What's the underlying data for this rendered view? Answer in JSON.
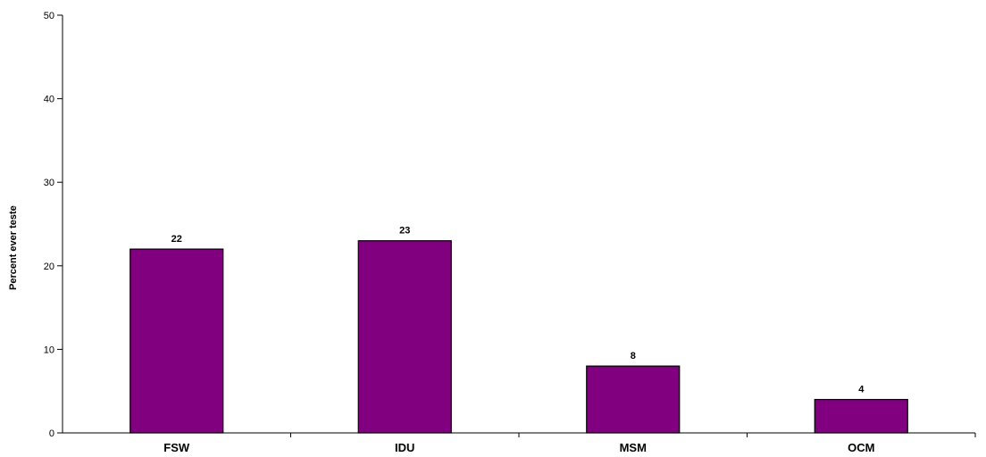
{
  "chart_data": {
    "type": "bar",
    "categories": [
      "FSW",
      "IDU",
      "MSM",
      "OCM"
    ],
    "values": [
      22,
      23,
      8,
      4
    ],
    "data_labels": [
      "22",
      "23",
      "8",
      "4"
    ],
    "ylabel": "Percent ever teste",
    "xlabel": "",
    "ylim": [
      0,
      50
    ],
    "yticks": [
      "0",
      "10",
      "20",
      "30",
      "40",
      "50"
    ],
    "bar_color": "#800080",
    "bar_edge_color": "#000000",
    "grid": false,
    "legend": "none"
  }
}
